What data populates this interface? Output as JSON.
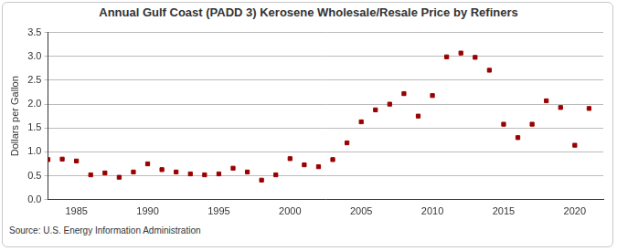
{
  "chart_data": {
    "type": "scatter",
    "title": "Annual Gulf Coast (PADD 3) Kerosene Wholesale/Resale Price by Refiners",
    "y_label": "Dollars per Gallon",
    "source": "Source: U.S. Energy Information Administration",
    "x": [
      1983,
      1984,
      1985,
      1986,
      1987,
      1988,
      1989,
      1990,
      1991,
      1992,
      1993,
      1994,
      1995,
      1996,
      1997,
      1998,
      1999,
      2000,
      2001,
      2002,
      2003,
      2004,
      2005,
      2006,
      2007,
      2008,
      2009,
      2010,
      2011,
      2012,
      2013,
      2014,
      2015,
      2016,
      2017,
      2018,
      2019,
      2020,
      2021
    ],
    "values": [
      0.84,
      0.85,
      0.81,
      0.52,
      0.56,
      0.47,
      0.58,
      0.75,
      0.63,
      0.58,
      0.54,
      0.52,
      0.54,
      0.66,
      0.58,
      0.41,
      0.52,
      0.86,
      0.73,
      0.69,
      0.84,
      1.19,
      1.63,
      1.88,
      2.0,
      2.22,
      1.75,
      2.18,
      2.99,
      3.07,
      2.98,
      2.71,
      1.58,
      1.3,
      1.58,
      2.07,
      1.93,
      1.14,
      1.91
    ],
    "color": "#990000",
    "marker": "square",
    "xlim": [
      1983,
      2022
    ],
    "xticks": [
      1985,
      1990,
      1995,
      2000,
      2005,
      2010,
      2015,
      2020
    ],
    "ylim": [
      0,
      3.5
    ],
    "yticks": [
      {
        "value": 0,
        "label": "0.0"
      },
      0.5,
      {
        "value": 1,
        "label": "1.0"
      },
      1.5,
      {
        "value": 2,
        "label": "2.0"
      },
      2.5,
      {
        "value": 3,
        "label": "3.0"
      },
      3.5
    ],
    "grid": true
  }
}
